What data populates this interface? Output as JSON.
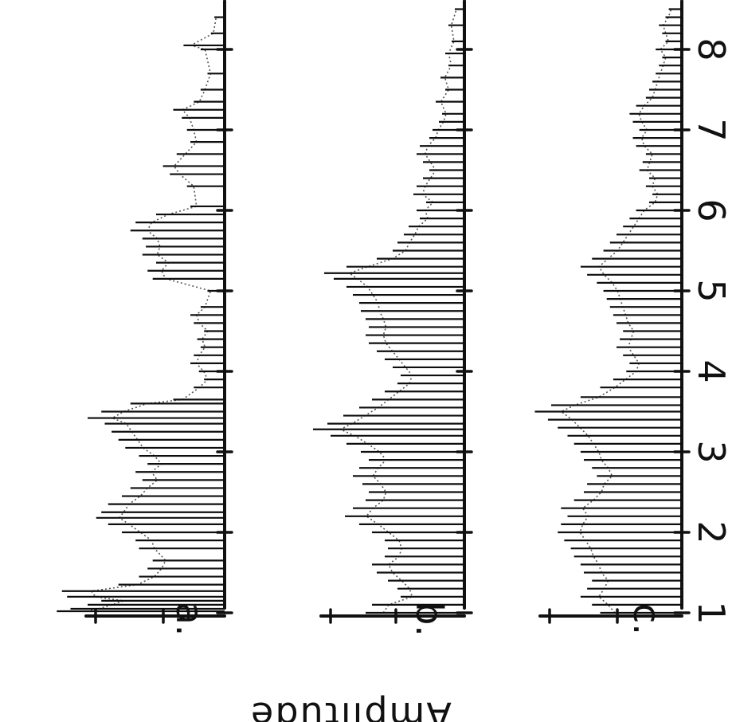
{
  "chart_data": {
    "type": "bar",
    "orientation": "rotated-90-clockwise",
    "ylabel": "Amplitude",
    "x_ticks": [
      "1",
      "2",
      "3",
      "4",
      "5",
      "6",
      "7",
      "8"
    ],
    "xlim": [
      1,
      8.6
    ],
    "ylim": [
      0,
      1
    ],
    "grid": false,
    "panels": [
      {
        "label": "a.",
        "spikes": [
          [
            1.02,
            0.98
          ],
          [
            1.05,
            0.9
          ],
          [
            1.1,
            0.8
          ],
          [
            1.15,
            0.72
          ],
          [
            1.2,
            0.92
          ],
          [
            1.27,
            0.95
          ],
          [
            1.35,
            0.62
          ],
          [
            1.45,
            0.5
          ],
          [
            1.55,
            0.45
          ],
          [
            1.65,
            0.42
          ],
          [
            1.8,
            0.5
          ],
          [
            1.9,
            0.52
          ],
          [
            2.0,
            0.6
          ],
          [
            2.1,
            0.68
          ],
          [
            2.18,
            0.75
          ],
          [
            2.25,
            0.72
          ],
          [
            2.35,
            0.68
          ],
          [
            2.45,
            0.6
          ],
          [
            2.55,
            0.55
          ],
          [
            2.65,
            0.48
          ],
          [
            2.75,
            0.52
          ],
          [
            2.85,
            0.45
          ],
          [
            2.95,
            0.5
          ],
          [
            3.05,
            0.58
          ],
          [
            3.15,
            0.62
          ],
          [
            3.25,
            0.66
          ],
          [
            3.35,
            0.7
          ],
          [
            3.42,
            0.8
          ],
          [
            3.5,
            0.72
          ],
          [
            3.6,
            0.55
          ],
          [
            3.65,
            0.3
          ],
          [
            3.8,
            0.18
          ],
          [
            3.9,
            0.12
          ],
          [
            4.0,
            0.15
          ],
          [
            4.1,
            0.2
          ],
          [
            4.2,
            0.18
          ],
          [
            4.3,
            0.14
          ],
          [
            4.4,
            0.16
          ],
          [
            4.5,
            0.12
          ],
          [
            4.6,
            0.18
          ],
          [
            4.7,
            0.2
          ],
          [
            4.8,
            0.14
          ],
          [
            5.0,
            0.1
          ],
          [
            5.15,
            0.42
          ],
          [
            5.25,
            0.45
          ],
          [
            5.35,
            0.4
          ],
          [
            5.45,
            0.48
          ],
          [
            5.55,
            0.46
          ],
          [
            5.65,
            0.48
          ],
          [
            5.75,
            0.55
          ],
          [
            5.85,
            0.52
          ],
          [
            5.95,
            0.4
          ],
          [
            6.05,
            0.2
          ],
          [
            6.3,
            0.22
          ],
          [
            6.45,
            0.32
          ],
          [
            6.55,
            0.36
          ],
          [
            6.7,
            0.28
          ],
          [
            6.85,
            0.2
          ],
          [
            7.0,
            0.22
          ],
          [
            7.15,
            0.25
          ],
          [
            7.25,
            0.3
          ],
          [
            7.35,
            0.18
          ],
          [
            7.5,
            0.14
          ],
          [
            7.7,
            0.1
          ],
          [
            8.0,
            0.14
          ],
          [
            8.05,
            0.24
          ],
          [
            8.2,
            0.08
          ],
          [
            8.4,
            0.06
          ]
        ]
      },
      {
        "label": "b.",
        "spikes": [
          [
            1.0,
            0.62
          ],
          [
            1.1,
            0.58
          ],
          [
            1.2,
            0.4
          ],
          [
            1.3,
            0.42
          ],
          [
            1.4,
            0.48
          ],
          [
            1.5,
            0.55
          ],
          [
            1.6,
            0.58
          ],
          [
            1.7,
            0.5
          ],
          [
            1.8,
            0.48
          ],
          [
            1.9,
            0.5
          ],
          [
            2.0,
            0.58
          ],
          [
            2.1,
            0.66
          ],
          [
            2.2,
            0.75
          ],
          [
            2.3,
            0.7
          ],
          [
            2.4,
            0.62
          ],
          [
            2.5,
            0.6
          ],
          [
            2.6,
            0.64
          ],
          [
            2.7,
            0.7
          ],
          [
            2.8,
            0.66
          ],
          [
            2.9,
            0.6
          ],
          [
            3.0,
            0.65
          ],
          [
            3.1,
            0.74
          ],
          [
            3.2,
            0.84
          ],
          [
            3.28,
            0.95
          ],
          [
            3.35,
            0.86
          ],
          [
            3.45,
            0.76
          ],
          [
            3.55,
            0.66
          ],
          [
            3.65,
            0.58
          ],
          [
            3.75,
            0.5
          ],
          [
            3.85,
            0.42
          ],
          [
            3.95,
            0.4
          ],
          [
            4.05,
            0.45
          ],
          [
            4.15,
            0.5
          ],
          [
            4.25,
            0.55
          ],
          [
            4.35,
            0.6
          ],
          [
            4.45,
            0.62
          ],
          [
            4.55,
            0.6
          ],
          [
            4.65,
            0.62
          ],
          [
            4.75,
            0.65
          ],
          [
            4.85,
            0.66
          ],
          [
            4.95,
            0.7
          ],
          [
            5.05,
            0.74
          ],
          [
            5.15,
            0.82
          ],
          [
            5.22,
            0.88
          ],
          [
            5.3,
            0.74
          ],
          [
            5.4,
            0.55
          ],
          [
            5.5,
            0.45
          ],
          [
            5.6,
            0.42
          ],
          [
            5.7,
            0.38
          ],
          [
            5.8,
            0.35
          ],
          [
            5.9,
            0.28
          ],
          [
            6.0,
            0.3
          ],
          [
            6.1,
            0.24
          ],
          [
            6.2,
            0.32
          ],
          [
            6.3,
            0.3
          ],
          [
            6.4,
            0.26
          ],
          [
            6.5,
            0.22
          ],
          [
            6.6,
            0.26
          ],
          [
            6.7,
            0.3
          ],
          [
            6.8,
            0.28
          ],
          [
            6.9,
            0.22
          ],
          [
            7.0,
            0.2
          ],
          [
            7.1,
            0.16
          ],
          [
            7.2,
            0.14
          ],
          [
            7.35,
            0.18
          ],
          [
            7.5,
            0.12
          ],
          [
            7.65,
            0.15
          ],
          [
            7.8,
            0.1
          ],
          [
            7.95,
            0.12
          ],
          [
            8.1,
            0.08
          ],
          [
            8.3,
            0.1
          ],
          [
            8.5,
            0.06
          ]
        ]
      },
      {
        "label": "c.",
        "spikes": [
          [
            1.0,
            0.5
          ],
          [
            1.1,
            0.55
          ],
          [
            1.2,
            0.62
          ],
          [
            1.3,
            0.58
          ],
          [
            1.4,
            0.55
          ],
          [
            1.5,
            0.6
          ],
          [
            1.6,
            0.62
          ],
          [
            1.7,
            0.66
          ],
          [
            1.8,
            0.68
          ],
          [
            1.9,
            0.72
          ],
          [
            2.0,
            0.76
          ],
          [
            2.1,
            0.74
          ],
          [
            2.2,
            0.7
          ],
          [
            2.3,
            0.74
          ],
          [
            2.4,
            0.66
          ],
          [
            2.5,
            0.6
          ],
          [
            2.6,
            0.58
          ],
          [
            2.7,
            0.52
          ],
          [
            2.8,
            0.55
          ],
          [
            2.9,
            0.6
          ],
          [
            3.0,
            0.62
          ],
          [
            3.1,
            0.66
          ],
          [
            3.2,
            0.7
          ],
          [
            3.3,
            0.76
          ],
          [
            3.4,
            0.82
          ],
          [
            3.5,
            0.9
          ],
          [
            3.58,
            0.8
          ],
          [
            3.68,
            0.62
          ],
          [
            3.8,
            0.5
          ],
          [
            3.9,
            0.42
          ],
          [
            4.0,
            0.34
          ],
          [
            4.1,
            0.32
          ],
          [
            4.2,
            0.36
          ],
          [
            4.3,
            0.4
          ],
          [
            4.4,
            0.38
          ],
          [
            4.5,
            0.36
          ],
          [
            4.6,
            0.4
          ],
          [
            4.7,
            0.42
          ],
          [
            4.8,
            0.44
          ],
          [
            4.9,
            0.46
          ],
          [
            5.0,
            0.48
          ],
          [
            5.1,
            0.52
          ],
          [
            5.2,
            0.58
          ],
          [
            5.3,
            0.62
          ],
          [
            5.4,
            0.55
          ],
          [
            5.5,
            0.48
          ],
          [
            5.6,
            0.44
          ],
          [
            5.7,
            0.4
          ],
          [
            5.8,
            0.36
          ],
          [
            5.9,
            0.32
          ],
          [
            6.0,
            0.28
          ],
          [
            6.1,
            0.2
          ],
          [
            6.2,
            0.18
          ],
          [
            6.3,
            0.22
          ],
          [
            6.4,
            0.2
          ],
          [
            6.5,
            0.26
          ],
          [
            6.6,
            0.24
          ],
          [
            6.7,
            0.22
          ],
          [
            6.8,
            0.28
          ],
          [
            6.9,
            0.3
          ],
          [
            7.0,
            0.26
          ],
          [
            7.1,
            0.3
          ],
          [
            7.2,
            0.32
          ],
          [
            7.3,
            0.28
          ],
          [
            7.4,
            0.22
          ],
          [
            7.5,
            0.2
          ],
          [
            7.6,
            0.18
          ],
          [
            7.7,
            0.16
          ],
          [
            7.8,
            0.14
          ],
          [
            7.9,
            0.12
          ],
          [
            8.0,
            0.16
          ],
          [
            8.1,
            0.1
          ],
          [
            8.2,
            0.12
          ],
          [
            8.3,
            0.14
          ],
          [
            8.4,
            0.1
          ],
          [
            8.5,
            0.08
          ]
        ]
      }
    ]
  }
}
